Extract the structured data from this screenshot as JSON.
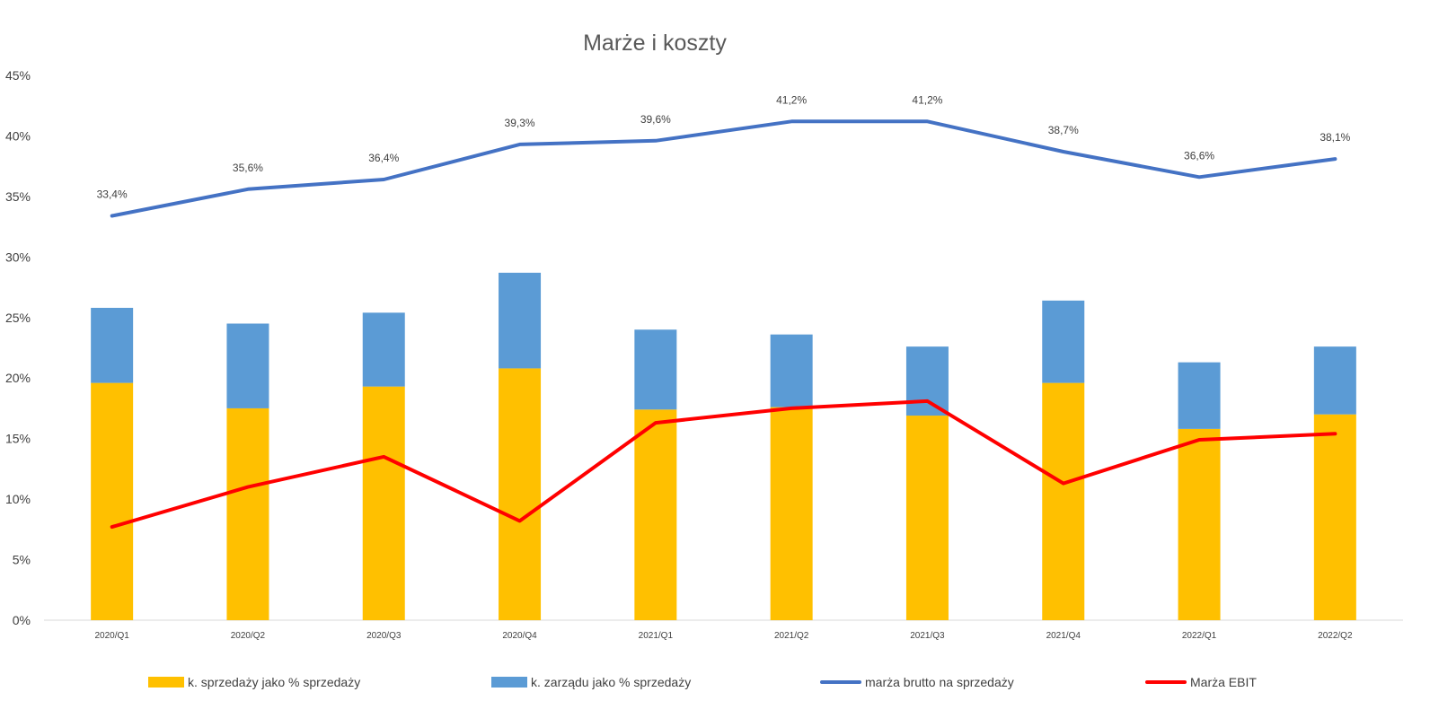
{
  "chart_data": {
    "type": "bar",
    "title": "Marże i koszty",
    "categories": [
      "2020/Q1",
      "2020/Q2",
      "2020/Q3",
      "2020/Q4",
      "2021/Q1",
      "2021/Q2",
      "2021/Q3",
      "2021/Q4",
      "2022/Q1",
      "2022/Q2"
    ],
    "ylim": [
      0,
      45
    ],
    "yticks": [
      "0%",
      "5%",
      "10%",
      "15%",
      "20%",
      "25%",
      "30%",
      "35%",
      "40%",
      "45%"
    ],
    "grid": false,
    "legend_position": "bottom",
    "series": [
      {
        "name": "k. sprzedaży jako % sprzedaży",
        "type": "stacked-bar",
        "color": "#FFC000",
        "values": [
          19.6,
          17.5,
          19.3,
          20.8,
          17.4,
          17.6,
          16.9,
          19.6,
          15.8,
          17.0
        ]
      },
      {
        "name": "k. zarządu jako % sprzedaży",
        "type": "stacked-bar",
        "color": "#5B9BD5",
        "values": [
          6.2,
          7.0,
          6.1,
          7.9,
          6.6,
          6.0,
          5.7,
          6.8,
          5.5,
          5.6
        ]
      },
      {
        "name": "marża brutto na sprzedaży",
        "type": "line",
        "color": "#4472C4",
        "values": [
          33.4,
          35.6,
          36.4,
          39.3,
          39.6,
          41.2,
          41.2,
          38.7,
          36.6,
          38.1
        ],
        "labels": [
          "33,4%",
          "35,6%",
          "36,4%",
          "39,3%",
          "39,6%",
          "41,2%",
          "41,2%",
          "38,7%",
          "36,6%",
          "38,1%"
        ]
      },
      {
        "name": "Marża EBIT",
        "type": "line",
        "color": "#FF0000",
        "values": [
          7.7,
          11.0,
          13.5,
          8.2,
          16.3,
          17.5,
          18.1,
          11.3,
          14.9,
          15.4
        ]
      }
    ]
  }
}
